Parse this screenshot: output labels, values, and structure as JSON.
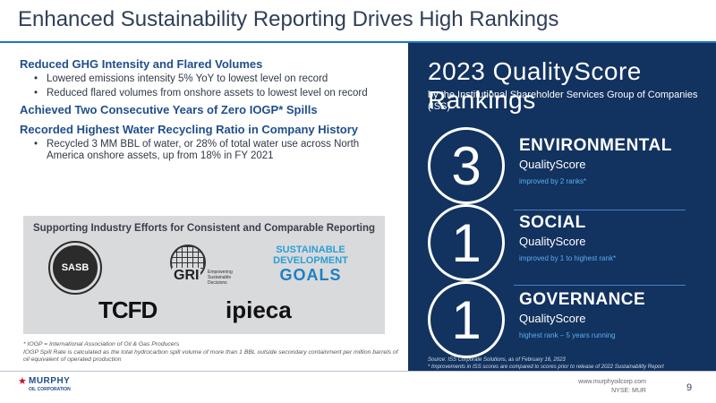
{
  "title": "Enhanced Sustainability Reporting Drives High Rankings",
  "left": {
    "sections": [
      {
        "heading": "Reduced GHG Intensity and Flared Volumes",
        "bullets": [
          "Lowered emissions intensity 5% YoY to lowest level on record",
          "Reduced flared volumes from onshore assets to lowest level on record"
        ]
      },
      {
        "heading": "Achieved Two Consecutive Years of Zero IOGP* Spills",
        "bullets": []
      },
      {
        "heading": "Recorded Highest Water Recycling Ratio in Company History",
        "bullets": [
          "Recycled 3 MM BBL of water, or 28% of total water use across North America onshore assets, up from 18% in FY 2021"
        ]
      }
    ]
  },
  "support": {
    "title": "Supporting Industry Efforts for Consistent and Comparable Reporting",
    "logos": {
      "sasb": "SASB",
      "gri": "GRI",
      "gri_small": "Empowering Sustainable Decisions",
      "sdg_line1": "SUSTAINABLE",
      "sdg_line2": "DEVELOPMENT",
      "sdg_line3": "GOALS",
      "tcfd": "TCFD",
      "ipieca": "ipieca"
    }
  },
  "footnotes": {
    "line1": "* IOGP = International Association of Oil & Gas Producers",
    "line2": "IOGP Spill Rate is calculated as the total hydrocarbon spill volume of more than 1 BBL outside secondary containment per million barrels of oil equivalent of operated production"
  },
  "panel": {
    "title": "2023 QualityScore Rankings",
    "subtitle": "by the Institutional Shareholder Services Group of Companies (ISS)",
    "rankings": [
      {
        "rank": "3",
        "category": "ENVIRONMENTAL",
        "label": "QualityScore",
        "note": "improved by 2 ranks*"
      },
      {
        "rank": "1",
        "category": "SOCIAL",
        "label": "QualityScore",
        "note": "improved by 1 to highest rank*"
      },
      {
        "rank": "1",
        "category": "GOVERNANCE",
        "label": "QualityScore",
        "note": "highest rank – 5 years running"
      }
    ],
    "source_line1": "Source: ISS Corporate Solutions, as of February 16, 2023",
    "source_line2": "* Improvements in ISS scores are compared to scores prior to release of 2022 Sustainability Report"
  },
  "footer": {
    "company": "MURPHY",
    "company_sub": "OIL CORPORATION",
    "website": "www.murphyoilcorp.com",
    "ticker": "NYSE: MUR",
    "page": "9"
  },
  "colors": {
    "panel_bg": "#12325f",
    "accent_blue": "#1e73c6",
    "heading_blue": "#1f4e8c",
    "murphy_red": "#c8102e"
  }
}
